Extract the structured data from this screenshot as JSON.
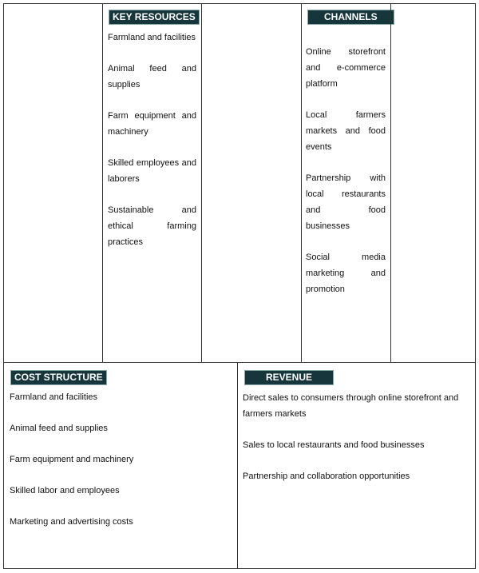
{
  "key_resources": {
    "title": "KEY RESOURCES",
    "items": [
      "Farmland and facilities",
      "Animal feed and supplies",
      "Farm equipment and machinery",
      "Skilled employees and laborers",
      "Sustainable and ethical farming practices"
    ]
  },
  "channels": {
    "title": "CHANNELS",
    "items": [
      "Online storefront and e-commerce platform",
      "Local farmers markets and food events",
      "Partnership with local restaurants and food businesses",
      "Social media marketing and promotion"
    ]
  },
  "cost_structure": {
    "title": "COST STRUCTURE",
    "items": [
      "Farmland and facilities",
      "Animal feed and supplies",
      "Farm equipment and machinery",
      "Skilled labor and employees",
      "Marketing and advertising costs"
    ]
  },
  "revenue": {
    "title": "REVENUE",
    "items": [
      "Direct sales to consumers through online storefront and farmers markets",
      "Sales to local restaurants and food businesses",
      "Partnership and collaboration opportunities"
    ]
  },
  "colors": {
    "header_bg": "#17363b"
  }
}
